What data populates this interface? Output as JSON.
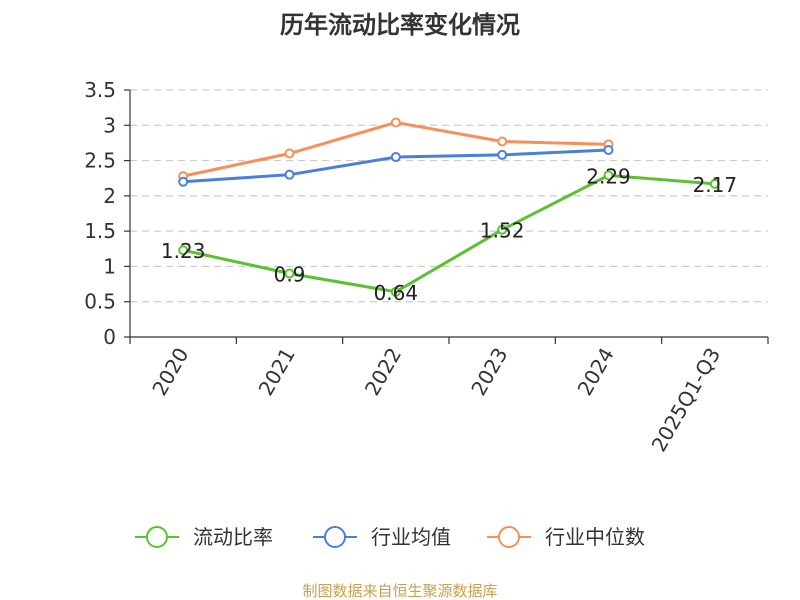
{
  "chart_data": {
    "type": "line",
    "title": "历年流动比率变化情况",
    "categories": [
      "2020",
      "2021",
      "2022",
      "2023",
      "2024",
      "2025Q1-Q3"
    ],
    "ylim": [
      0,
      3.5
    ],
    "yticks": [
      "0",
      "0.5",
      "1",
      "1.5",
      "2",
      "2.5",
      "3",
      "3.5"
    ],
    "grid": true,
    "legend_position": "bottom",
    "series": [
      {
        "name": "流动比率",
        "color": "#5bc12f",
        "values": [
          1.23,
          0.9,
          0.64,
          1.52,
          2.29,
          2.17
        ],
        "labels": [
          "1.23",
          "0.9",
          "0.64",
          "1.52",
          "2.29",
          "2.17"
        ]
      },
      {
        "name": "行业均值",
        "color": "#4a7fdc",
        "values": [
          2.2,
          2.3,
          2.55,
          2.58,
          2.65,
          null
        ]
      },
      {
        "name": "行业中位数",
        "color": "#f5905a",
        "values": [
          2.28,
          2.6,
          3.04,
          2.77,
          2.73,
          null
        ]
      }
    ]
  },
  "source": {
    "text": "制图数据来自恒生聚源数据库",
    "color": "#c8a050"
  }
}
